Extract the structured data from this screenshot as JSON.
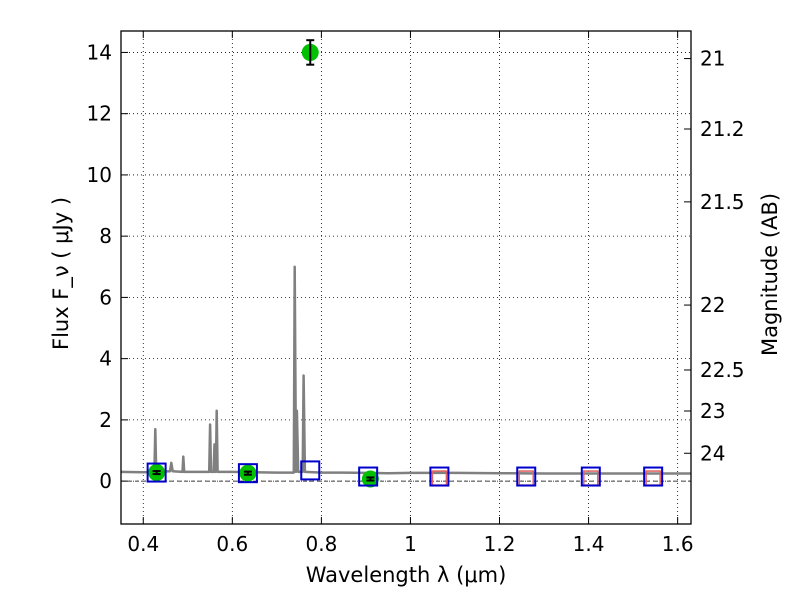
{
  "chart_data": {
    "type": "scatter",
    "xlabel": "Wavelength  λ (μm)",
    "ylabel": "Flux  F_ν  ( μJy )",
    "y2label": "Magnitude (AB)",
    "xlim": [
      0.35,
      1.63
    ],
    "ylim": [
      -1.4,
      14.7
    ],
    "grid": true,
    "x_ticks": [
      {
        "value": 0.4,
        "label": "0.4"
      },
      {
        "value": 0.6,
        "label": "0.6"
      },
      {
        "value": 0.8,
        "label": "0.8"
      },
      {
        "value": 1.0,
        "label": "1"
      },
      {
        "value": 1.2,
        "label": "1.2"
      },
      {
        "value": 1.4,
        "label": "1.4"
      },
      {
        "value": 1.6,
        "label": "1.6"
      }
    ],
    "y_ticks": [
      {
        "value": 0,
        "label": "0"
      },
      {
        "value": 2,
        "label": "2"
      },
      {
        "value": 4,
        "label": "4"
      },
      {
        "value": 6,
        "label": "6"
      },
      {
        "value": 8,
        "label": "8"
      },
      {
        "value": 10,
        "label": "10"
      },
      {
        "value": 12,
        "label": "12"
      },
      {
        "value": 14,
        "label": "14"
      }
    ],
    "y2_ticks": [
      {
        "flux": 13.8,
        "label": "21"
      },
      {
        "flux": 11.5,
        "label": "21.2"
      },
      {
        "flux": 9.12,
        "label": "21.5"
      },
      {
        "flux": 5.75,
        "label": "22"
      },
      {
        "flux": 3.63,
        "label": "22.5"
      },
      {
        "flux": 2.29,
        "label": "23"
      },
      {
        "flux": 0.91,
        "label": "24"
      }
    ],
    "sed_spectrum": {
      "color": "#808080",
      "points": [
        [
          0.35,
          0.3
        ],
        [
          0.4,
          0.29
        ],
        [
          0.425,
          0.3
        ],
        [
          0.427,
          1.7
        ],
        [
          0.429,
          0.3
        ],
        [
          0.46,
          0.32
        ],
        [
          0.463,
          0.6
        ],
        [
          0.466,
          0.32
        ],
        [
          0.488,
          0.3
        ],
        [
          0.49,
          0.8
        ],
        [
          0.492,
          0.3
        ],
        [
          0.5,
          0.3
        ],
        [
          0.548,
          0.3
        ],
        [
          0.55,
          1.85
        ],
        [
          0.552,
          0.3
        ],
        [
          0.558,
          0.3
        ],
        [
          0.56,
          1.2
        ],
        [
          0.562,
          0.3
        ],
        [
          0.563,
          0.3
        ],
        [
          0.565,
          2.3
        ],
        [
          0.567,
          0.3
        ],
        [
          0.6,
          0.3
        ],
        [
          0.7,
          0.28
        ],
        [
          0.738,
          0.28
        ],
        [
          0.74,
          7.0
        ],
        [
          0.743,
          0.3
        ],
        [
          0.745,
          2.3
        ],
        [
          0.748,
          0.3
        ],
        [
          0.758,
          0.3
        ],
        [
          0.76,
          3.45
        ],
        [
          0.763,
          0.3
        ],
        [
          0.8,
          0.28
        ],
        [
          0.85,
          0.28
        ],
        [
          0.9,
          0.27
        ],
        [
          0.95,
          0.26
        ],
        [
          1.0,
          0.27
        ],
        [
          1.1,
          0.27
        ],
        [
          1.2,
          0.26
        ],
        [
          1.3,
          0.25
        ],
        [
          1.4,
          0.25
        ],
        [
          1.5,
          0.25
        ],
        [
          1.63,
          0.25
        ]
      ]
    },
    "observed_points": {
      "color": "#00c000",
      "points": [
        {
          "x": 0.43,
          "y": 0.28,
          "err": 0.05
        },
        {
          "x": 0.635,
          "y": 0.26,
          "err": 0.05
        },
        {
          "x": 0.775,
          "y": 14.0,
          "err": 0.4
        },
        {
          "x": 0.91,
          "y": 0.07,
          "err": 0.05
        }
      ]
    },
    "model_boxes": {
      "color": "#0000cc",
      "points": [
        {
          "x": 0.43,
          "y": 0.28
        },
        {
          "x": 0.635,
          "y": 0.26
        },
        {
          "x": 0.775,
          "y": 0.35
        },
        {
          "x": 0.905,
          "y": 0.15
        },
        {
          "x": 1.065,
          "y": 0.15
        },
        {
          "x": 1.26,
          "y": 0.15
        },
        {
          "x": 1.405,
          "y": 0.15
        },
        {
          "x": 1.545,
          "y": 0.15
        }
      ]
    },
    "upper_limits": {
      "color": "#e06060",
      "points": [
        {
          "x": 1.065,
          "y": 0.1
        },
        {
          "x": 1.26,
          "y": 0.1
        },
        {
          "x": 1.405,
          "y": 0.1
        },
        {
          "x": 1.545,
          "y": 0.1
        }
      ]
    }
  }
}
